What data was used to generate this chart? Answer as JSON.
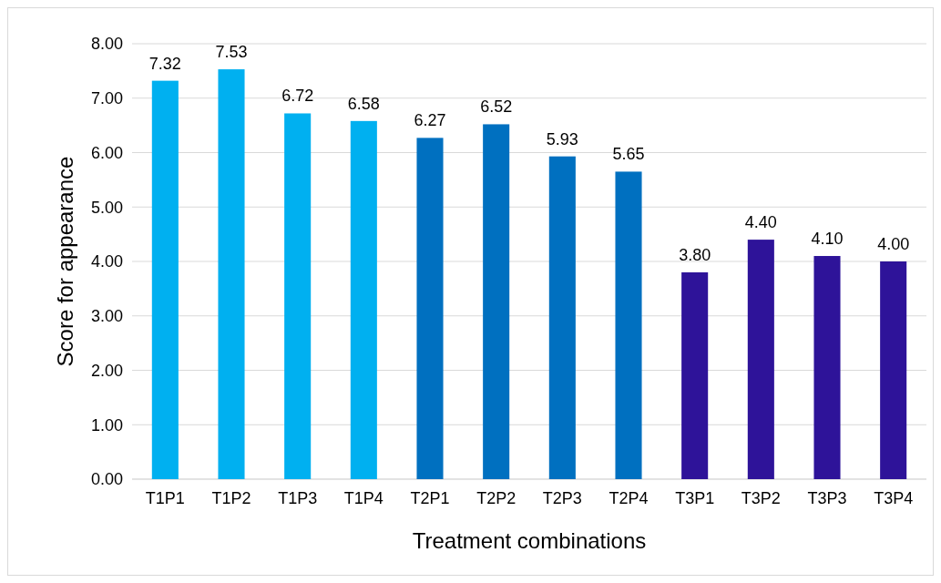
{
  "chart_data": {
    "type": "bar",
    "xlabel": "Treatment combinations",
    "ylabel": "Score for appearance",
    "categories": [
      "T1P1",
      "T1P2",
      "T1P3",
      "T1P4",
      "T2P1",
      "T2P2",
      "T2P3",
      "T2P4",
      "T3P1",
      "T3P2",
      "T3P3",
      "T3P4"
    ],
    "values": [
      7.32,
      7.53,
      6.72,
      6.58,
      6.27,
      6.52,
      5.93,
      5.65,
      3.8,
      4.4,
      4.1,
      4.0
    ],
    "value_labels": [
      "7.32",
      "7.53",
      "6.72",
      "6.58",
      "6.27",
      "6.52",
      "5.93",
      "5.65",
      "3.80",
      "4.40",
      "4.10",
      "4.00"
    ],
    "colors": [
      "#00b0f0",
      "#00b0f0",
      "#00b0f0",
      "#00b0f0",
      "#0070c0",
      "#0070c0",
      "#0070c0",
      "#0070c0",
      "#2e1399",
      "#2e1399",
      "#2e1399",
      "#2e1399"
    ],
    "ylim": [
      0,
      8
    ],
    "yticks": [
      {
        "value": 0,
        "label": "0.00"
      },
      {
        "value": 1,
        "label": "1.00"
      },
      {
        "value": 2,
        "label": "2.00"
      },
      {
        "value": 3,
        "label": "3.00"
      },
      {
        "value": 4,
        "label": "4.00"
      },
      {
        "value": 5,
        "label": "5.00"
      },
      {
        "value": 6,
        "label": "6.00"
      },
      {
        "value": 7,
        "label": "7.00"
      },
      {
        "value": 8,
        "label": "8.00"
      }
    ],
    "grid": "y"
  }
}
